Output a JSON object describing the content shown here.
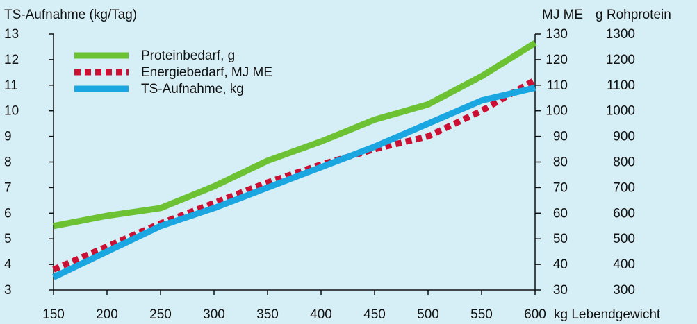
{
  "chart_data": {
    "type": "line",
    "x": [
      150,
      200,
      250,
      300,
      350,
      400,
      450,
      500,
      550,
      600
    ],
    "xlabel": "kg Lebendgewicht",
    "xlim": [
      150,
      600
    ],
    "y_left_label": "TS-Aufnahme (kg/Tag)",
    "y_left_lim": [
      3,
      13
    ],
    "y_left_ticks": [
      "3",
      "4",
      "5",
      "6",
      "7",
      "8",
      "9",
      "10",
      "11",
      "12",
      "13"
    ],
    "y_right1_label": "MJ ME",
    "y_right1_lim": [
      30,
      130
    ],
    "y_right1_ticks": [
      "30",
      "40",
      "50",
      "60",
      "70",
      "80",
      "90",
      "100",
      "110",
      "120",
      "130"
    ],
    "y_right2_label": "g Rohprotein",
    "y_right2_lim": [
      300,
      1300
    ],
    "y_right2_ticks": [
      "300",
      "400",
      "500",
      "600",
      "700",
      "800",
      "900",
      "1000",
      "1100",
      "1200",
      "1300"
    ],
    "x_ticks": [
      "150",
      "200",
      "250",
      "300",
      "350",
      "400",
      "450",
      "500",
      "550",
      "600"
    ],
    "grid": false,
    "legend_position": "top-left",
    "series": [
      {
        "name": "Proteinbedarf, g",
        "axis": "g Rohprotein",
        "values": [
          550,
          590,
          620,
          705,
          805,
          880,
          965,
          1025,
          1135,
          1265
        ],
        "color": "#6cc232",
        "style": "solid"
      },
      {
        "name": "Energiebedarf, MJ ME",
        "axis": "MJ ME",
        "values": [
          38,
          47,
          56,
          64,
          72,
          79,
          85,
          90,
          100,
          112
        ],
        "color": "#cc1034",
        "style": "dotted"
      },
      {
        "name": "TS-Aufnahme, kg",
        "axis": "TS-Aufnahme (kg/Tag)",
        "values": [
          3.5,
          4.5,
          5.5,
          6.2,
          7.0,
          7.8,
          8.6,
          9.5,
          10.4,
          10.9
        ],
        "color": "#1aa6e0",
        "style": "solid"
      }
    ]
  }
}
